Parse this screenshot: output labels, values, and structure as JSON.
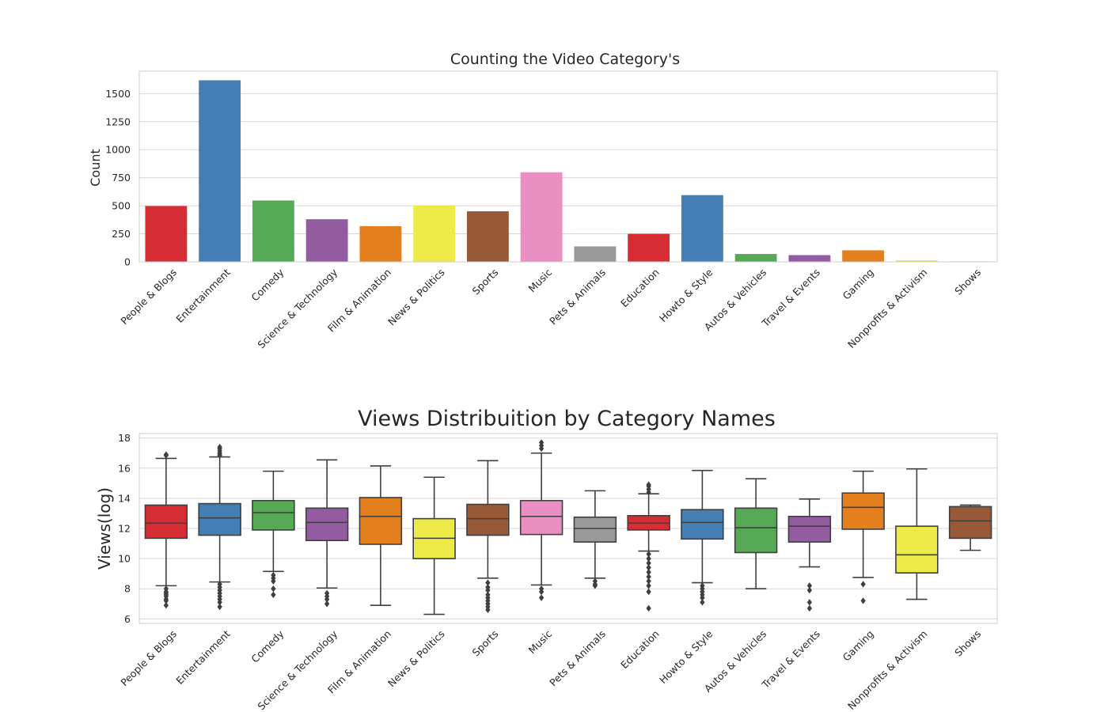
{
  "chart_data": [
    {
      "type": "bar",
      "title": "Counting the Video Category's",
      "xlabel": "",
      "ylabel": "Count",
      "ylim": [
        0,
        1700
      ],
      "yticks": [
        0,
        250,
        500,
        750,
        1000,
        1250,
        1500
      ],
      "grid": true,
      "categories": [
        "People & Blogs",
        "Entertainment",
        "Comedy",
        "Science & Technology",
        "Film & Animation",
        "News & Politics",
        "Sports",
        "Music",
        "Pets & Animals",
        "Education",
        "Howto & Style",
        "Autos & Vehicles",
        "Travel & Events",
        "Gaming",
        "Nonprofits & Activism",
        "Shows"
      ],
      "values": [
        498,
        1619,
        547,
        380,
        318,
        505,
        451,
        799,
        138,
        250,
        595,
        70,
        60,
        103,
        14,
        4
      ],
      "colors": [
        "#d62d35",
        "#437eb4",
        "#57aa55",
        "#935ca0",
        "#e47f1e",
        "#eeea48",
        "#985a36",
        "#ea8fc1",
        "#999999",
        "#d62d35",
        "#437eb4",
        "#57aa55",
        "#935ca0",
        "#e47f1e",
        "#eeea48",
        "#985a36"
      ]
    },
    {
      "type": "box",
      "title": "Views Distribuition by Category Names",
      "xlabel": "",
      "ylabel": "Views(log)",
      "ylim": [
        5.7,
        18.3
      ],
      "yticks": [
        6,
        8,
        10,
        12,
        14,
        16,
        18
      ],
      "grid": true,
      "categories": [
        "People & Blogs",
        "Entertainment",
        "Comedy",
        "Science & Technology",
        "Film & Animation",
        "News & Politics",
        "Sports",
        "Music",
        "Pets & Animals",
        "Education",
        "Howto & Style",
        "Autos & Vehicles",
        "Travel & Events",
        "Gaming",
        "Nonprofits & Activism",
        "Shows"
      ],
      "colors": [
        "#d62d35",
        "#437eb4",
        "#57aa55",
        "#935ca0",
        "#e47f1e",
        "#eeea48",
        "#985a36",
        "#ea8fc1",
        "#999999",
        "#d62d35",
        "#437eb4",
        "#57aa55",
        "#935ca0",
        "#e47f1e",
        "#eeea48",
        "#985a36"
      ],
      "boxes": [
        {
          "whislo": 8.2,
          "q1": 11.35,
          "med": 12.35,
          "q3": 13.55,
          "whishi": 16.65,
          "fliers": [
            16.9,
            16.85,
            8.0,
            7.8,
            7.7,
            7.6,
            7.5,
            7.3,
            7.2,
            6.9
          ]
        },
        {
          "whislo": 8.45,
          "q1": 11.55,
          "med": 12.7,
          "q3": 13.65,
          "whishi": 16.75,
          "fliers": [
            17.4,
            17.3,
            17.15,
            17.0,
            16.9,
            16.85,
            8.3,
            8.1,
            7.9,
            7.7,
            7.5,
            7.3,
            7.1,
            6.8
          ]
        },
        {
          "whislo": 9.15,
          "q1": 11.9,
          "med": 13.05,
          "q3": 13.85,
          "whishi": 15.8,
          "fliers": [
            8.9,
            8.7,
            8.5,
            8.0,
            7.6
          ]
        },
        {
          "whislo": 8.05,
          "q1": 11.2,
          "med": 12.4,
          "q3": 13.35,
          "whishi": 16.55,
          "fliers": [
            7.7,
            7.5,
            7.3,
            7.0
          ]
        },
        {
          "whislo": 6.9,
          "q1": 10.95,
          "med": 12.8,
          "q3": 14.05,
          "whishi": 16.15,
          "fliers": []
        },
        {
          "whislo": 6.3,
          "q1": 10.0,
          "med": 11.35,
          "q3": 12.65,
          "whishi": 15.4,
          "fliers": []
        },
        {
          "whislo": 8.7,
          "q1": 11.55,
          "med": 12.65,
          "q3": 13.6,
          "whishi": 16.5,
          "fliers": [
            8.4,
            8.1,
            7.9,
            7.6,
            7.4,
            7.2,
            7.0,
            6.8,
            6.6
          ]
        },
        {
          "whislo": 8.25,
          "q1": 11.6,
          "med": 12.8,
          "q3": 13.85,
          "whishi": 17.0,
          "fliers": [
            17.7,
            17.5,
            17.3,
            8.0,
            7.8,
            7.4
          ]
        },
        {
          "whislo": 8.7,
          "q1": 11.1,
          "med": 12.0,
          "q3": 12.75,
          "whishi": 14.5,
          "fliers": [
            8.5,
            8.3,
            8.2
          ]
        },
        {
          "whislo": 10.5,
          "q1": 11.9,
          "med": 12.35,
          "q3": 12.85,
          "whishi": 14.3,
          "fliers": [
            14.9,
            14.8,
            14.6,
            14.4,
            10.3,
            10.0,
            9.7,
            9.4,
            9.1,
            8.8,
            8.5,
            8.2,
            7.8,
            6.7
          ]
        },
        {
          "whislo": 8.4,
          "q1": 11.3,
          "med": 12.4,
          "q3": 13.25,
          "whishi": 15.85,
          "fliers": [
            8.2,
            8.0,
            7.8,
            7.6,
            7.4,
            7.1
          ]
        },
        {
          "whislo": 8.0,
          "q1": 10.4,
          "med": 12.05,
          "q3": 13.35,
          "whishi": 15.3,
          "fliers": []
        },
        {
          "whislo": 9.45,
          "q1": 11.1,
          "med": 12.15,
          "q3": 12.8,
          "whishi": 13.95,
          "fliers": [
            8.2,
            7.9,
            7.1,
            6.7
          ]
        },
        {
          "whislo": 8.75,
          "q1": 11.95,
          "med": 13.4,
          "q3": 14.35,
          "whishi": 15.8,
          "fliers": [
            8.3,
            7.2
          ]
        },
        {
          "whislo": 7.3,
          "q1": 9.05,
          "med": 10.25,
          "q3": 12.15,
          "whishi": 15.95,
          "fliers": []
        },
        {
          "whislo": 10.55,
          "q1": 11.35,
          "med": 12.5,
          "q3": 13.45,
          "whishi": 13.55,
          "fliers": []
        }
      ]
    }
  ]
}
